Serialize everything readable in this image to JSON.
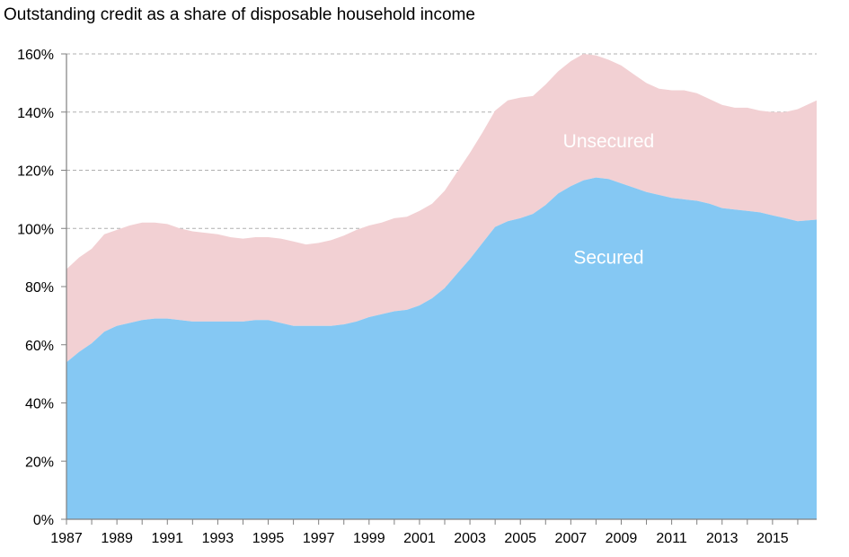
{
  "chart_data": {
    "type": "area",
    "stacked": true,
    "title": "Outstanding credit as a share of disposable household income",
    "xlabel": "",
    "ylabel": "",
    "xlim": [
      1987,
      2016.75
    ],
    "ylim": [
      0,
      160
    ],
    "y_ticks": [
      0,
      20,
      40,
      60,
      80,
      100,
      120,
      140,
      160
    ],
    "y_tick_labels": [
      "0%",
      "20%",
      "40%",
      "60%",
      "80%",
      "100%",
      "120%",
      "140%",
      "160%"
    ],
    "x_ticks": [
      1987,
      1989,
      1991,
      1993,
      1995,
      1997,
      1999,
      2001,
      2003,
      2005,
      2007,
      2009,
      2011,
      2013,
      2015
    ],
    "x_tick_labels": [
      "1987",
      "1989",
      "1991",
      "1993",
      "1995",
      "1997",
      "1999",
      "2001",
      "2003",
      "2005",
      "2007",
      "2009",
      "2011",
      "2013",
      "2015"
    ],
    "grid": "horizontal dashed",
    "colors": {
      "secured": "#85C8F3",
      "unsecured": "#F2D0D3",
      "grid": "#b0b0b0",
      "axis": "#808080",
      "label": "#ffffff"
    },
    "x": [
      1987,
      1987.5,
      1988,
      1988.5,
      1989,
      1989.5,
      1990,
      1990.5,
      1991,
      1991.5,
      1992,
      1992.5,
      1993,
      1993.5,
      1994,
      1994.5,
      1995,
      1995.5,
      1996,
      1996.5,
      1997,
      1997.5,
      1998,
      1998.5,
      1999,
      1999.5,
      2000,
      2000.5,
      2001,
      2001.5,
      2002,
      2002.5,
      2003,
      2003.5,
      2004,
      2004.5,
      2005,
      2005.5,
      2006,
      2006.5,
      2007,
      2007.5,
      2008,
      2008.5,
      2009,
      2009.5,
      2010,
      2010.5,
      2011,
      2011.5,
      2012,
      2012.5,
      2013,
      2013.5,
      2014,
      2014.5,
      2015,
      2015.5,
      2016,
      2016.75
    ],
    "series": [
      {
        "name": "Secured",
        "label_position": [
          2008.5,
          90
        ],
        "values": [
          54,
          57.5,
          60.5,
          64.5,
          66.5,
          67.5,
          68.5,
          69,
          69,
          68.5,
          68,
          68,
          68,
          68,
          68,
          68.5,
          68.5,
          67.5,
          66.5,
          66.5,
          66.5,
          66.5,
          67,
          68,
          69.5,
          70.5,
          71.5,
          72,
          73.5,
          76,
          79.5,
          84.5,
          89.5,
          95,
          100.5,
          102.5,
          103.5,
          105,
          108,
          112,
          114.5,
          116.5,
          117.5,
          117,
          115.5,
          114,
          112.5,
          111.5,
          110.5,
          110,
          109.5,
          108.5,
          107,
          106.5,
          106,
          105.5,
          104.5,
          103.5,
          102.5,
          103
        ]
      },
      {
        "name": "Unsecured",
        "label_position": [
          2008.5,
          130
        ],
        "values": [
          32,
          32.5,
          32.5,
          33.5,
          33,
          33.5,
          33.5,
          33,
          32.5,
          31.5,
          31,
          30.5,
          30,
          29,
          28.5,
          28.5,
          28.5,
          29,
          29,
          28,
          28.5,
          29.5,
          30.5,
          31.5,
          31.5,
          31.5,
          32,
          32,
          32.5,
          32.5,
          33.5,
          35,
          36.5,
          38,
          40,
          41.5,
          41.5,
          40.5,
          41.5,
          42,
          43,
          43.5,
          42,
          41,
          40.5,
          39,
          37.5,
          36.5,
          37,
          37.5,
          37,
          36,
          35.5,
          35,
          35.5,
          35,
          35.5,
          36.5,
          38.5,
          41
        ]
      }
    ]
  }
}
